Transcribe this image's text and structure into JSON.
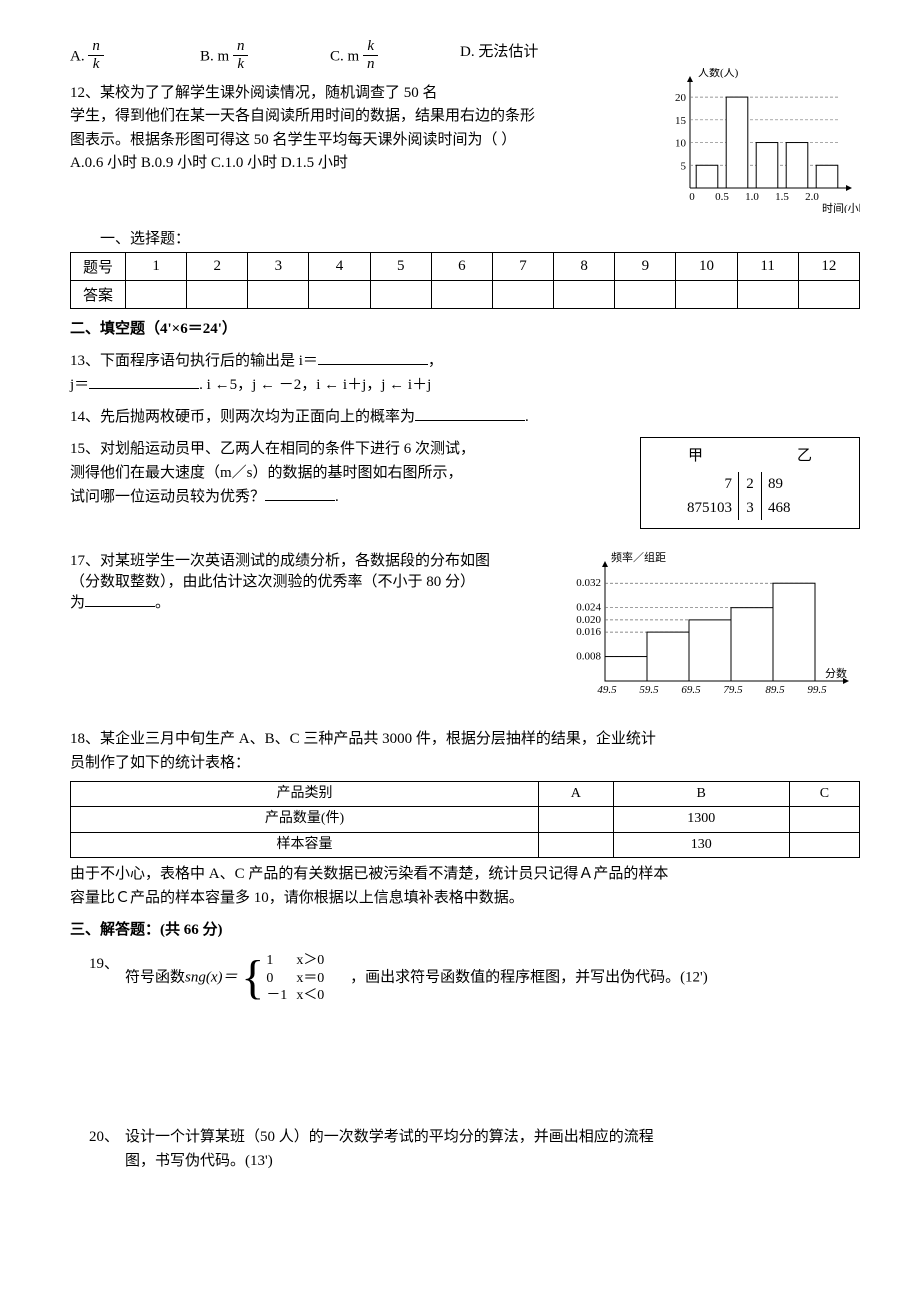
{
  "q11": {
    "optA_prefix": "A.",
    "optA_num": "n",
    "optA_den": "k",
    "optB_prefix": "B. m",
    "optB_num": "n",
    "optB_den": "k",
    "optC_prefix": "C. m",
    "optC_num": "k",
    "optC_den": "n",
    "optD": "D.  无法估计"
  },
  "q12": {
    "line1": "12、某校为了了解学生课外阅读情况，随机调查了  50  名",
    "line2": "学生，得到他们在某一天各自阅读所用时间的数据，结果用右边的条形",
    "line3": "图表示。根据条形图可得这  50  名学生平均每天课外阅读时间为（       ）",
    "line4": "A.0.6 小时       B.0.9 小时        C.1.0 小时       D.1.5 小时",
    "chart": {
      "y_label": "人数(人)",
      "x_label": "时间(小时)",
      "y_ticks": [
        "5",
        "10",
        "15",
        "20"
      ],
      "x_ticks": [
        "0",
        "0.5",
        "1.0",
        "1.5",
        "2.0"
      ],
      "y_max": 22,
      "values": [
        5,
        20,
        10,
        10,
        5
      ],
      "bar_color": "#ffffff",
      "border_color": "#000000",
      "grid_color": "#777777"
    }
  },
  "answer_grid": {
    "title": "一、选择题：",
    "header_label": "题号",
    "answer_label": "答案",
    "numbers": [
      "1",
      "2",
      "3",
      "4",
      "5",
      "6",
      "7",
      "8",
      "9",
      "10",
      "11",
      "12"
    ]
  },
  "section2_title": "二、填空题（4'×6＝24'）",
  "q13": {
    "line1": "13、下面程序语句执行后的输出是  i＝",
    "comma": "，",
    "line2_a": "j＝",
    "line2_b": ".                         i   ←5，j  ← －2，i   ←   i＋j，j   ←   i＋j"
  },
  "q14": "14、先后抛两枚硬币，则两次均为正面向上的概率为",
  "q14_end": ".",
  "q15": {
    "line1": "15、对划船运动员甲、乙两人在相同的条件下进行  6  次测试，",
    "line2": "测得他们在最大速度（m／s）的数据的基时图如右图所示，",
    "line3": "试问哪一位运动员较为优秀？",
    "end": ".",
    "stem_leaf": {
      "header_left": "甲",
      "header_right": "乙",
      "rows": [
        {
          "left": "7",
          "stem": "2",
          "right": "89"
        },
        {
          "left": "875103",
          "stem": "3",
          "right": "468"
        }
      ]
    }
  },
  "q17": {
    "line1": "17、对某班学生一次英语测试的成绩分析，各数据段的分布如图",
    "line2": "（分数取整数），由此估计这次测验的优秀率（不小于 80 分）",
    "line3_a": "为",
    "line3_b": "。",
    "hist": {
      "y_label": "频率／组距",
      "x_label": "分数",
      "y_ticks": [
        "0.008",
        "0.016",
        "0.020",
        "0.024",
        "0.032"
      ],
      "y_values": [
        0.008,
        0.016,
        0.02,
        0.024,
        0.032
      ],
      "x_ticks": [
        "49.5",
        "59.5",
        "69.5",
        "79.5",
        "89.5",
        "99.5"
      ],
      "bar_values": [
        0.008,
        0.016,
        0.02,
        0.024,
        0.032
      ],
      "y_max": 0.036,
      "bar_color": "#ffffff",
      "border_color": "#000000",
      "grid_color": "#666666"
    }
  },
  "q18": {
    "line1": "18、某企业三月中旬生产  A、B、C  三种产品共 3000 件，根据分层抽样的结果，企业统计",
    "line2": "员制作了如下的统计表格：",
    "table": {
      "headers": [
        "产品类别",
        "A",
        "B",
        "C"
      ],
      "row1": [
        "产品数量(件)",
        "",
        "1300",
        ""
      ],
      "row2": [
        "样本容量",
        "",
        "130",
        ""
      ]
    },
    "line3": "由于不小心，表格中 A、C 产品的有关数据已被污染看不清楚，统计员只记得Ａ产品的样本",
    "line4": "容量比Ｃ产品的样本容量多 10，请你根据以上信息填补表格中数据。"
  },
  "section3_title": "三、解答题：(共 66 分)",
  "q19": {
    "num": "19、",
    "pre": "符号函数",
    "fn": "sng(x)＝",
    "case1_v": "1",
    "case1_c": "x＞0",
    "case2_v": "0",
    "case2_c": "x＝0",
    "case3_v": "－1",
    "case3_c": "x＜0",
    "post": "，画出求符号函数值的程序框图，并写出伪代码。(12')"
  },
  "q20": {
    "num": "20、",
    "line1": "  设计一个计算某班（50 人）的一次数学考试的平均分的算法，并画出相应的流程",
    "line2": "图，书写伪代码。(13')"
  }
}
